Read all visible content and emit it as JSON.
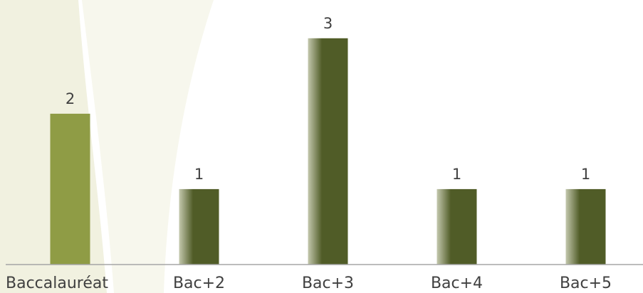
{
  "chart_data": {
    "type": "bar",
    "title": "",
    "xlabel": "",
    "ylabel": "",
    "categories": [
      "Baccalauréat",
      "Bac+2",
      "Bac+3",
      "Bac+4",
      "Bac+5"
    ],
    "values": [
      2,
      1,
      3,
      1,
      1
    ],
    "ylim": [
      0,
      3.3
    ],
    "grid": false,
    "legend": "none",
    "data_labels": true,
    "colors": {
      "highlight_bar": "#8f9c45",
      "bar": "#505c27",
      "bar_edge_light": "#c4c8ae",
      "axis_line": "#a6a6a6",
      "label_text": "#404040",
      "background_stripe": "#eeeed8"
    }
  }
}
